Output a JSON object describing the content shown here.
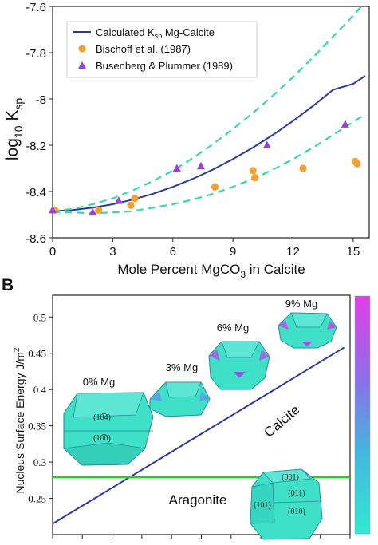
{
  "colors": {
    "calcite_curve": "#2a3a9c",
    "dashed_bounds": "#3dd6a7",
    "bischoff": "#f5a030",
    "busenberg": "#9a40d8",
    "energy_line": "#2a3a9c",
    "aragonite_line": "#3cbf35",
    "crystal_fill": "#3fe0c8",
    "crystal_edge": "#2a8a9a",
    "colorbar_top": "#e040e8",
    "colorbar_bottom": "#30ead0"
  },
  "chart_data": [
    {
      "type": "scatter",
      "panel_label": "",
      "title": "",
      "xlabel": "Mole Percent MgCO",
      "xlabel_sub": "3",
      "xlabel_suffix": " in Calcite",
      "ylabel": "log",
      "ylabel_sub": "10",
      "ylabel_var": " K",
      "ylabel_var_sub": "sp",
      "xlim": [
        0,
        15.8
      ],
      "ylim": [
        -8.6,
        -7.6
      ],
      "xticks": [
        "0",
        "3",
        "6",
        "9",
        "12",
        "15"
      ],
      "xtick_values": [
        0,
        3,
        6,
        9,
        12,
        15
      ],
      "yticks": [
        "-7.6",
        "-7.8",
        "-8",
        "-8.2",
        "-8.4",
        "-8.6"
      ],
      "ytick_values": [
        -7.6,
        -7.8,
        -8.0,
        -8.2,
        -8.4,
        -8.6
      ],
      "legend_position": "top-left",
      "legend": [
        {
          "label": "Calculated K",
          "sub": "sp",
          "suffix": " Mg-Calcite",
          "marker": "line"
        },
        {
          "label": "Bischoff et al. (1987)",
          "marker": "circle"
        },
        {
          "label": "Busenberg & Plummer (1989)",
          "marker": "triangle"
        }
      ],
      "series": [
        {
          "name": "Calculated Ksp Mg-Calcite",
          "style": "solid",
          "x": [
            0,
            1,
            2,
            3,
            4,
            5,
            6,
            7,
            8,
            9,
            10,
            11,
            12,
            13,
            14,
            15,
            15.6
          ],
          "y": [
            -8.485,
            -8.48,
            -8.47,
            -8.455,
            -8.435,
            -8.41,
            -8.38,
            -8.345,
            -8.305,
            -8.26,
            -8.21,
            -8.155,
            -8.095,
            -8.03,
            -7.96,
            -7.935,
            -7.9
          ]
        },
        {
          "name": "Upper bound",
          "style": "dashed",
          "x": [
            0,
            1,
            2,
            3,
            4,
            5,
            6,
            7,
            8,
            9,
            10,
            11,
            12,
            13,
            14,
            15,
            15.6
          ],
          "y": [
            -8.485,
            -8.475,
            -8.455,
            -8.43,
            -8.395,
            -8.355,
            -8.31,
            -8.255,
            -8.195,
            -8.13,
            -8.06,
            -7.985,
            -7.905,
            -7.82,
            -7.73,
            -7.64,
            -7.58
          ]
        },
        {
          "name": "Lower bound",
          "style": "dashed",
          "x": [
            0,
            1,
            2,
            3,
            4,
            5,
            6,
            7,
            8,
            9,
            10,
            11,
            12,
            13,
            14,
            15,
            15.6
          ],
          "y": [
            -8.49,
            -8.49,
            -8.495,
            -8.49,
            -8.485,
            -8.47,
            -8.455,
            -8.435,
            -8.41,
            -8.38,
            -8.345,
            -8.305,
            -8.26,
            -8.21,
            -8.155,
            -8.1,
            -8.065
          ]
        },
        {
          "name": "Bischoff et al. (1987)",
          "marker": "circle",
          "x": [
            0.1,
            2.3,
            3.9,
            4.1,
            8.1,
            10.0,
            10.1,
            12.5,
            15.1,
            15.2
          ],
          "y": [
            -8.48,
            -8.48,
            -8.46,
            -8.43,
            -8.38,
            -8.31,
            -8.34,
            -8.3,
            -8.27,
            -8.28
          ]
        },
        {
          "name": "Busenberg & Plummer (1989)",
          "marker": "triangle",
          "x": [
            0.0,
            2.0,
            3.3,
            6.2,
            7.4,
            10.7,
            14.6
          ],
          "y": [
            -8.48,
            -8.49,
            -8.44,
            -8.3,
            -8.29,
            -8.2,
            -8.11
          ]
        }
      ]
    },
    {
      "type": "line",
      "panel_label": "B",
      "title": "",
      "ylabel": "Nucleus Surface Energy J/m",
      "ylabel_sup": "2",
      "ylim": [
        0.2,
        0.53
      ],
      "yticks": [
        "0.5",
        "0.45",
        "0.4",
        "0.35",
        "0.3",
        "0.25"
      ],
      "ytick_values": [
        0.5,
        0.45,
        0.4,
        0.35,
        0.3,
        0.25
      ],
      "xlim": [
        0,
        10
      ],
      "series": [
        {
          "name": "Calcite",
          "x": [
            0,
            9.8
          ],
          "y": [
            0.215,
            0.458
          ]
        },
        {
          "name": "Aragonite",
          "x": [
            0,
            10
          ],
          "y": [
            0.279,
            0.279
          ]
        }
      ],
      "annotations": {
        "calcite": "Calcite",
        "aragonite": "Aragonite",
        "mg0": "0% Mg",
        "mg3": "3% Mg",
        "mg6": "6% Mg",
        "mg9": "9% Mg",
        "face_1014": "(10̅4)",
        "face_1010": "(10̅0)",
        "face_001": "(001)",
        "face_011": "(011)",
        "face_101": "(101)",
        "face_010": "(010)"
      }
    }
  ]
}
